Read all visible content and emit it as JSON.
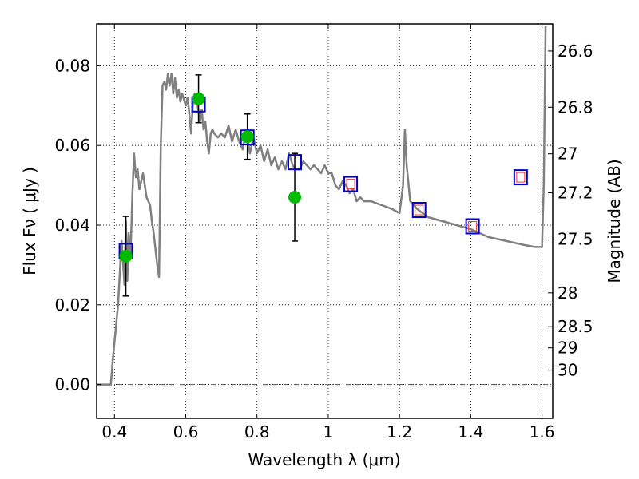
{
  "chart_data": {
    "type": "scatter",
    "xlabel": "Wavelength  λ (μm)",
    "ylabel": "Flux  Fν  ( μJy )",
    "ylabel_right": "Magnitude (AB)",
    "xlim": [
      0.35,
      1.63
    ],
    "ylim": [
      -0.0085,
      0.0905
    ],
    "grid": true,
    "x_ticks": [
      0.4,
      0.6,
      0.8,
      1.0,
      1.2,
      1.4,
      1.6
    ],
    "x_tick_labels": [
      "0.4",
      "0.6",
      "0.8",
      "1",
      "1.2",
      "1.4",
      "1.6"
    ],
    "y_ticks": [
      0.0,
      0.02,
      0.04,
      0.06,
      0.08
    ],
    "y_tick_labels": [
      "0.00",
      "0.02",
      "0.04",
      "0.06",
      "0.08"
    ],
    "right_ticks": [
      {
        "label": "26.6",
        "flux": 0.0837
      },
      {
        "label": "26.8",
        "flux": 0.0696
      },
      {
        "label": "27",
        "flux": 0.0579
      },
      {
        "label": "27.2",
        "flux": 0.0481
      },
      {
        "label": "27.5",
        "flux": 0.0365
      },
      {
        "label": "28",
        "flux": 0.023
      },
      {
        "label": "28.5",
        "flux": 0.0145
      },
      {
        "label": "29",
        "flux": 0.0092
      },
      {
        "label": "30",
        "flux": 0.0036
      }
    ],
    "colors": {
      "model": "#808080",
      "observed": "#00bb00",
      "box": "#0000cc",
      "inner_box": "#ee3333",
      "errorbar": "#000000",
      "zero_line": "#555555"
    },
    "model_curve": {
      "x": [
        0.35,
        0.39,
        0.395,
        0.41,
        0.42,
        0.428,
        0.432,
        0.436,
        0.44,
        0.445,
        0.45,
        0.455,
        0.46,
        0.465,
        0.47,
        0.48,
        0.49,
        0.5,
        0.505,
        0.51,
        0.52,
        0.525,
        0.53,
        0.535,
        0.54,
        0.545,
        0.55,
        0.555,
        0.56,
        0.565,
        0.57,
        0.575,
        0.58,
        0.585,
        0.59,
        0.6,
        0.605,
        0.61,
        0.615,
        0.62,
        0.625,
        0.63,
        0.64,
        0.645,
        0.65,
        0.655,
        0.66,
        0.665,
        0.67,
        0.675,
        0.68,
        0.69,
        0.7,
        0.71,
        0.72,
        0.73,
        0.74,
        0.75,
        0.76,
        0.77,
        0.78,
        0.79,
        0.8,
        0.81,
        0.82,
        0.83,
        0.84,
        0.85,
        0.86,
        0.87,
        0.88,
        0.89,
        0.9,
        0.91,
        0.92,
        0.93,
        0.94,
        0.95,
        0.96,
        0.97,
        0.98,
        0.99,
        1.0,
        1.01,
        1.02,
        1.03,
        1.04,
        1.05,
        1.06,
        1.07,
        1.08,
        1.09,
        1.1,
        1.12,
        1.15,
        1.18,
        1.2,
        1.21,
        1.215,
        1.22,
        1.23,
        1.25,
        1.28,
        1.32,
        1.36,
        1.4,
        1.45,
        1.5,
        1.55,
        1.58,
        1.6,
        1.605,
        1.61
      ],
      "y": [
        0.0,
        0.0,
        0.006,
        0.02,
        0.036,
        0.025,
        0.041,
        0.026,
        0.038,
        0.032,
        0.047,
        0.058,
        0.052,
        0.054,
        0.049,
        0.053,
        0.047,
        0.045,
        0.041,
        0.038,
        0.03,
        0.027,
        0.06,
        0.075,
        0.076,
        0.074,
        0.078,
        0.075,
        0.078,
        0.073,
        0.077,
        0.072,
        0.074,
        0.071,
        0.073,
        0.07,
        0.072,
        0.068,
        0.063,
        0.07,
        0.073,
        0.072,
        0.066,
        0.069,
        0.064,
        0.066,
        0.061,
        0.058,
        0.063,
        0.064,
        0.063,
        0.062,
        0.063,
        0.062,
        0.065,
        0.061,
        0.064,
        0.061,
        0.059,
        0.064,
        0.058,
        0.062,
        0.058,
        0.06,
        0.056,
        0.059,
        0.055,
        0.057,
        0.054,
        0.056,
        0.054,
        0.058,
        0.055,
        0.054,
        0.054,
        0.056,
        0.055,
        0.054,
        0.055,
        0.054,
        0.053,
        0.055,
        0.053,
        0.053,
        0.05,
        0.049,
        0.051,
        0.05,
        0.048,
        0.049,
        0.046,
        0.047,
        0.046,
        0.046,
        0.045,
        0.044,
        0.043,
        0.05,
        0.064,
        0.055,
        0.046,
        0.044,
        0.042,
        0.041,
        0.04,
        0.039,
        0.037,
        0.036,
        0.035,
        0.0345,
        0.0345,
        0.05,
        0.09
      ]
    },
    "model_points": {
      "x": [
        0.432,
        0.636,
        0.773,
        0.906,
        1.063,
        1.255,
        1.405,
        1.54
      ],
      "y": [
        0.0335,
        0.0703,
        0.062,
        0.0558,
        0.0503,
        0.0438,
        0.0397,
        0.052
      ]
    },
    "observed": {
      "x": [
        0.432,
        0.636,
        0.773,
        0.906
      ],
      "y": [
        0.0322,
        0.0717,
        0.0622,
        0.047
      ],
      "yerr": [
        0.01,
        0.006,
        0.0057,
        0.011
      ]
    },
    "inner_boxes": {
      "x": [
        1.063,
        1.255,
        1.405,
        1.54
      ],
      "y": [
        0.0503,
        0.0438,
        0.0397,
        0.052
      ]
    }
  }
}
